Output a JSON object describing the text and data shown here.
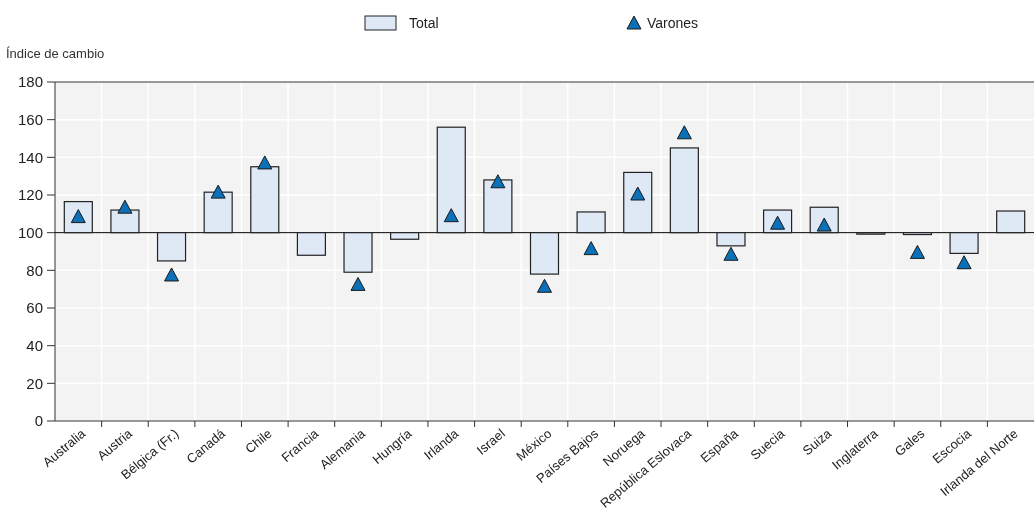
{
  "chart_data": {
    "type": "bar",
    "ylabel": "Índice de cambio",
    "categories": [
      "Australia",
      "Austria",
      "Bélgica (Fr.)",
      "Canadá",
      "Chile",
      "Francia",
      "Alemania",
      "Hungría",
      "Irlanda",
      "Israel",
      "México",
      "Países Bajos",
      "Noruega",
      "República Eslovaca",
      "España",
      "Suecia",
      "Suiza",
      "Inglaterra",
      "Gales",
      "Escocia",
      "Irlanda del Norte"
    ],
    "series": [
      {
        "name": "Total",
        "color": "#dfe8f5",
        "base": [
          100,
          100,
          100,
          100,
          100,
          100,
          100,
          100,
          100,
          100,
          100,
          100,
          100,
          100,
          100,
          100,
          100,
          100,
          100,
          100,
          100
        ],
        "values": [
          16.5,
          12,
          -15,
          21.5,
          35,
          -12,
          -21,
          -3.5,
          56,
          28,
          -22,
          11,
          32,
          45,
          -7,
          12,
          13.5,
          -0.5,
          -1,
          -11,
          11.5
        ]
      },
      {
        "name": "Varones",
        "type": "scatter",
        "color": "#0a70b8",
        "marker": "triangle",
        "x": [
          "Australia",
          "Austria",
          "Bélgica (Fr.)",
          "Canadá",
          "Chile",
          "Francia",
          "Alemania",
          "Hungría",
          "Irlanda",
          "Israel",
          "México",
          "Países Bajos",
          "Noruega",
          "República Eslovaca",
          "España",
          "Suecia",
          "Suiza",
          "Inglaterra",
          "Gales",
          "Escocia",
          "Irlanda del Norte"
        ],
        "values": [
          108,
          113,
          77,
          121,
          136.5,
          null,
          72,
          null,
          108.5,
          126.5,
          71,
          91,
          120,
          152.5,
          88,
          104.5,
          103.5,
          null,
          89,
          83.5,
          null
        ]
      }
    ],
    "ylim": [
      0,
      180
    ],
    "yticks": [
      0,
      20,
      40,
      60,
      80,
      100,
      120,
      140,
      160,
      180
    ],
    "ref_lines": [
      {
        "axis": "y",
        "value": 100,
        "color": "#000000"
      }
    ],
    "grid": true,
    "legend": "top"
  }
}
